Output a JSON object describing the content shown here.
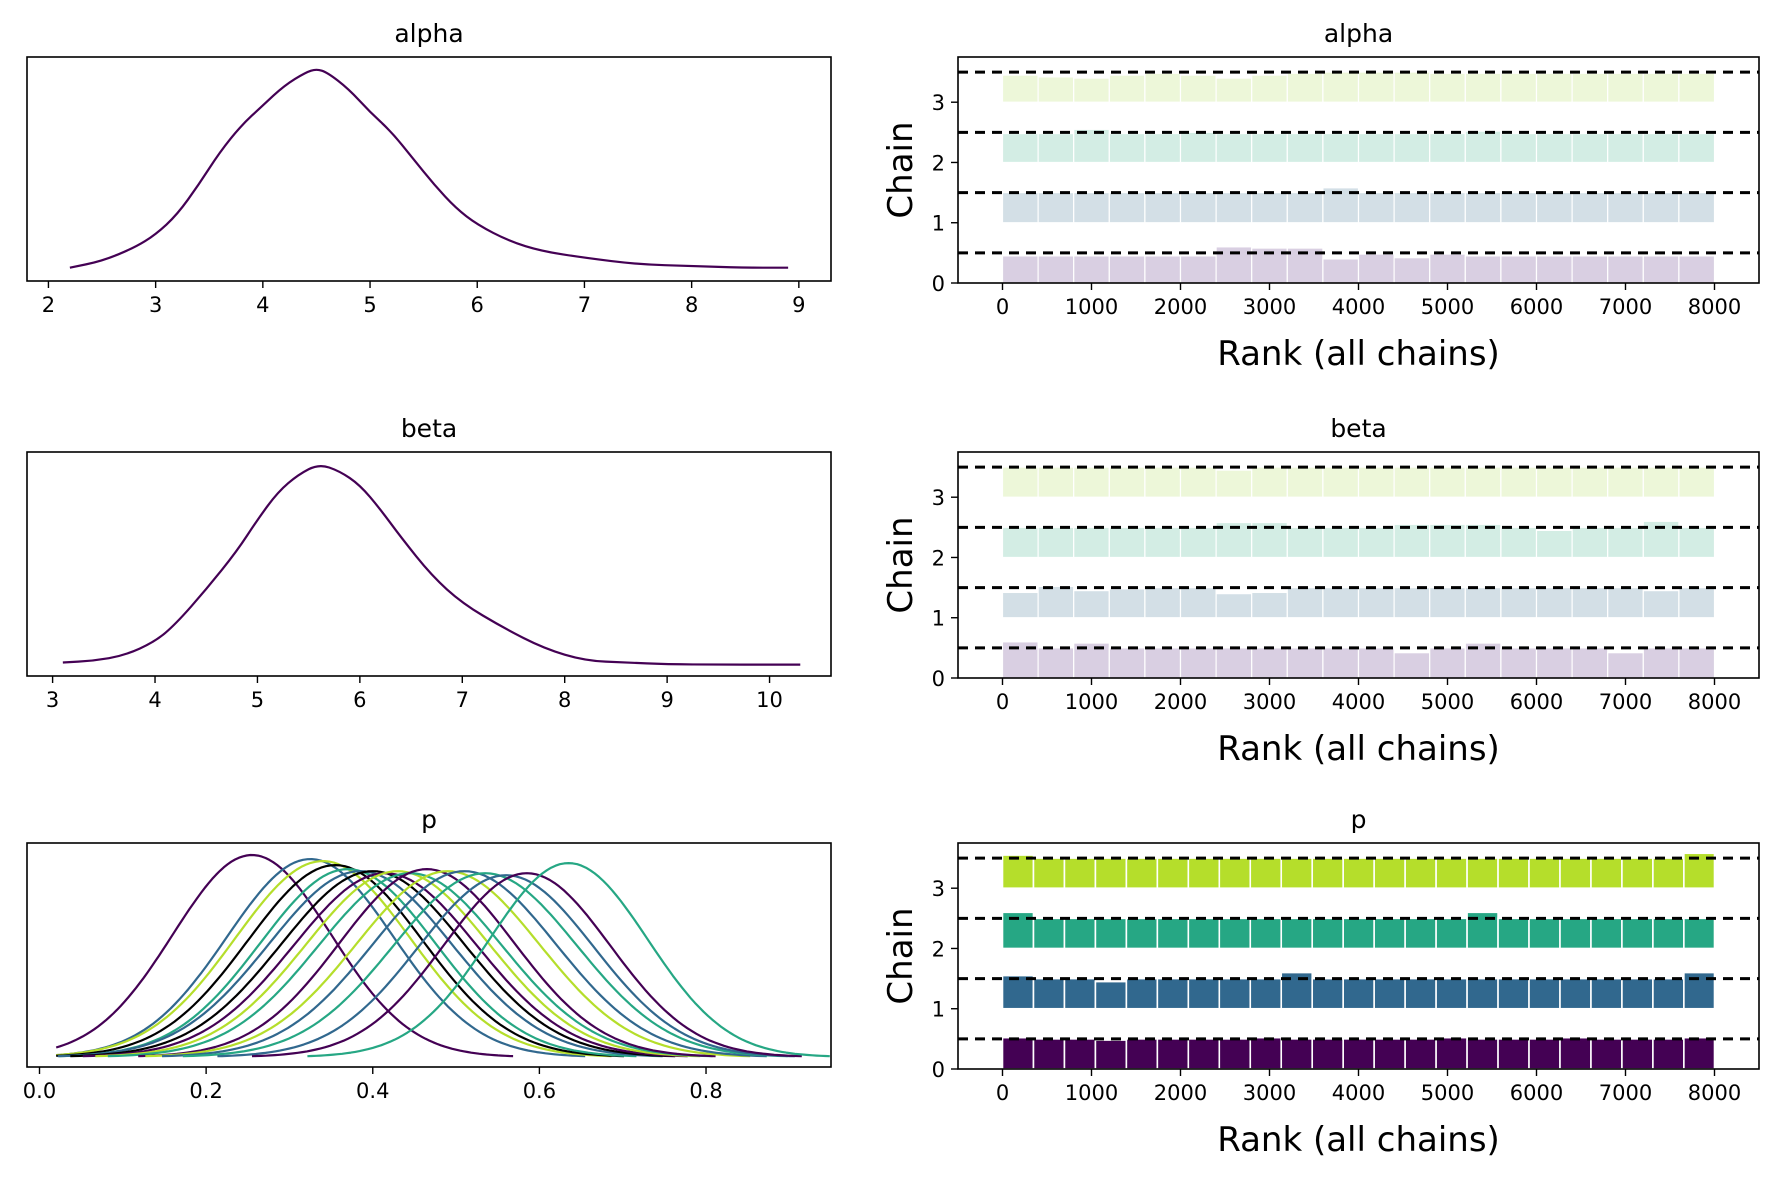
{
  "colors": {
    "chains_solid": [
      "#440154",
      "#31688e",
      "#26a784",
      "#b5de2b"
    ],
    "chains_faded": [
      "#d9cfe2",
      "#d3dfe6",
      "#d3ede4",
      "#edf7d9"
    ],
    "single_kde": "#440154"
  },
  "chart_data": [
    {
      "type": "line",
      "subtype": "kde",
      "title": "alpha",
      "xticks": [
        2,
        3,
        4,
        5,
        6,
        7,
        8,
        9
      ],
      "xlim": [
        1.8,
        9.3
      ],
      "yticks_visible": false,
      "series": [
        {
          "x": [
            2.2,
            2.5,
            2.8,
            3.0,
            3.2,
            3.4,
            3.6,
            3.8,
            4.0,
            4.2,
            4.4,
            4.5,
            4.6,
            4.8,
            5.0,
            5.2,
            5.4,
            5.6,
            5.8,
            6.0,
            6.3,
            6.6,
            7.0,
            7.5,
            8.0,
            8.5,
            8.9
          ],
          "y": [
            0.01,
            0.03,
            0.07,
            0.11,
            0.17,
            0.26,
            0.36,
            0.44,
            0.5,
            0.56,
            0.6,
            0.61,
            0.6,
            0.55,
            0.48,
            0.42,
            0.34,
            0.26,
            0.19,
            0.14,
            0.09,
            0.06,
            0.04,
            0.02,
            0.015,
            0.01,
            0.01
          ]
        }
      ]
    },
    {
      "type": "bar",
      "subtype": "rank",
      "title": "alpha",
      "xlabel": "Rank (all chains)",
      "ylabel": "Chain",
      "xticks": [
        0,
        1000,
        2000,
        3000,
        4000,
        5000,
        6000,
        7000,
        8000
      ],
      "yticks": [
        0,
        1,
        2,
        3
      ],
      "xlim": [
        -500,
        8500
      ],
      "ylim": [
        0,
        3.75
      ],
      "bin_width": 400,
      "bins": 20,
      "reference_level": 0.5,
      "chains": [
        {
          "chain": 0,
          "heights": [
            0.45,
            0.45,
            0.45,
            0.45,
            0.45,
            0.45,
            0.6,
            0.58,
            0.58,
            0.4,
            0.48,
            0.42,
            0.48,
            0.45,
            0.45,
            0.45,
            0.45,
            0.45,
            0.45,
            0.45
          ]
        },
        {
          "chain": 1,
          "heights": [
            0.5,
            0.5,
            0.5,
            0.5,
            0.5,
            0.5,
            0.5,
            0.5,
            0.5,
            0.58,
            0.5,
            0.5,
            0.5,
            0.5,
            0.5,
            0.5,
            0.5,
            0.5,
            0.5,
            0.5
          ]
        },
        {
          "chain": 2,
          "heights": [
            0.48,
            0.48,
            0.55,
            0.48,
            0.48,
            0.5,
            0.48,
            0.48,
            0.48,
            0.48,
            0.48,
            0.48,
            0.48,
            0.52,
            0.48,
            0.48,
            0.48,
            0.48,
            0.48,
            0.48
          ]
        },
        {
          "chain": 3,
          "heights": [
            0.45,
            0.42,
            0.4,
            0.45,
            0.48,
            0.45,
            0.4,
            0.45,
            0.48,
            0.5,
            0.5,
            0.5,
            0.48,
            0.48,
            0.48,
            0.48,
            0.48,
            0.48,
            0.48,
            0.48
          ]
        }
      ]
    },
    {
      "type": "line",
      "subtype": "kde",
      "title": "beta",
      "xticks": [
        3,
        4,
        5,
        6,
        7,
        8,
        9,
        10
      ],
      "xlim": [
        2.75,
        10.6
      ],
      "yticks_visible": false,
      "series": [
        {
          "x": [
            3.1,
            3.4,
            3.7,
            4.0,
            4.2,
            4.5,
            4.8,
            5.0,
            5.2,
            5.4,
            5.6,
            5.8,
            6.0,
            6.2,
            6.4,
            6.7,
            7.0,
            7.4,
            7.8,
            8.2,
            8.6,
            9.0,
            9.5,
            10.0,
            10.3
          ],
          "y": [
            0.01,
            0.015,
            0.03,
            0.07,
            0.12,
            0.22,
            0.33,
            0.42,
            0.5,
            0.55,
            0.58,
            0.56,
            0.52,
            0.45,
            0.37,
            0.26,
            0.18,
            0.11,
            0.05,
            0.015,
            0.01,
            0.005,
            0.004,
            0.004,
            0.004
          ]
        }
      ]
    },
    {
      "type": "bar",
      "subtype": "rank",
      "title": "beta",
      "xlabel": "Rank (all chains)",
      "ylabel": "Chain",
      "xticks": [
        0,
        1000,
        2000,
        3000,
        4000,
        5000,
        6000,
        7000,
        8000
      ],
      "yticks": [
        0,
        1,
        2,
        3
      ],
      "xlim": [
        -500,
        8500
      ],
      "ylim": [
        0,
        3.75
      ],
      "bin_width": 400,
      "bins": 20,
      "reference_level": 0.5,
      "chains": [
        {
          "chain": 0,
          "heights": [
            0.6,
            0.5,
            0.58,
            0.5,
            0.5,
            0.5,
            0.5,
            0.5,
            0.5,
            0.5,
            0.5,
            0.42,
            0.5,
            0.58,
            0.5,
            0.5,
            0.5,
            0.42,
            0.5,
            0.5
          ]
        },
        {
          "chain": 1,
          "heights": [
            0.42,
            0.52,
            0.45,
            0.48,
            0.5,
            0.5,
            0.4,
            0.42,
            0.5,
            0.5,
            0.5,
            0.5,
            0.5,
            0.5,
            0.5,
            0.5,
            0.5,
            0.5,
            0.45,
            0.5
          ]
        },
        {
          "chain": 2,
          "heights": [
            0.5,
            0.5,
            0.5,
            0.5,
            0.5,
            0.5,
            0.58,
            0.58,
            0.5,
            0.5,
            0.5,
            0.55,
            0.55,
            0.55,
            0.5,
            0.45,
            0.5,
            0.5,
            0.6,
            0.5
          ]
        },
        {
          "chain": 3,
          "heights": [
            0.5,
            0.5,
            0.5,
            0.5,
            0.5,
            0.5,
            0.45,
            0.5,
            0.5,
            0.5,
            0.5,
            0.5,
            0.5,
            0.5,
            0.5,
            0.5,
            0.5,
            0.5,
            0.5,
            0.5
          ]
        }
      ]
    },
    {
      "type": "line",
      "subtype": "kde",
      "title": "p",
      "xticks": [
        0.0,
        0.2,
        0.4,
        0.6,
        0.8
      ],
      "xlim": [
        -0.015,
        0.95
      ],
      "yticks_visible": false,
      "components": [
        {
          "mu": 0.255,
          "sigma": 0.095,
          "amp": 1.0,
          "color": "#440154"
        },
        {
          "mu": 0.325,
          "sigma": 0.1,
          "amp": 0.98,
          "color": "#31688e"
        },
        {
          "mu": 0.34,
          "sigma": 0.105,
          "amp": 0.97,
          "color": "#b5de2b"
        },
        {
          "mu": 0.355,
          "sigma": 0.105,
          "amp": 0.95,
          "color": "#000000"
        },
        {
          "mu": 0.37,
          "sigma": 0.105,
          "amp": 0.93,
          "color": "#26a784"
        },
        {
          "mu": 0.385,
          "sigma": 0.11,
          "amp": 0.92,
          "color": "#31688e"
        },
        {
          "mu": 0.4,
          "sigma": 0.11,
          "amp": 0.92,
          "color": "#000000"
        },
        {
          "mu": 0.415,
          "sigma": 0.11,
          "amp": 0.91,
          "color": "#440154"
        },
        {
          "mu": 0.43,
          "sigma": 0.11,
          "amp": 0.92,
          "color": "#b5de2b"
        },
        {
          "mu": 0.445,
          "sigma": 0.11,
          "amp": 0.91,
          "color": "#26a784"
        },
        {
          "mu": 0.465,
          "sigma": 0.105,
          "amp": 0.93,
          "color": "#440154"
        },
        {
          "mu": 0.49,
          "sigma": 0.11,
          "amp": 0.92,
          "color": "#b5de2b"
        },
        {
          "mu": 0.51,
          "sigma": 0.11,
          "amp": 0.92,
          "color": "#31688e"
        },
        {
          "mu": 0.535,
          "sigma": 0.11,
          "amp": 0.91,
          "color": "#26a784"
        },
        {
          "mu": 0.56,
          "sigma": 0.105,
          "amp": 0.9,
          "color": "#31688e"
        },
        {
          "mu": 0.585,
          "sigma": 0.1,
          "amp": 0.91,
          "color": "#440154"
        },
        {
          "mu": 0.635,
          "sigma": 0.095,
          "amp": 0.96,
          "color": "#26a784"
        }
      ]
    },
    {
      "type": "bar",
      "subtype": "rank",
      "title": "p",
      "xlabel": "Rank (all chains)",
      "ylabel": "Chain",
      "xticks": [
        0,
        1000,
        2000,
        3000,
        4000,
        5000,
        6000,
        7000,
        8000
      ],
      "yticks": [
        0,
        1,
        2,
        3
      ],
      "xlim": [
        -500,
        8500
      ],
      "ylim": [
        0,
        3.75
      ],
      "bin_width": 348,
      "bins": 23,
      "reference_level": 0.5,
      "chains": [
        {
          "chain": 0,
          "heights": [
            0.52,
            0.5,
            0.5,
            0.48,
            0.5,
            0.5,
            0.5,
            0.5,
            0.52,
            0.5,
            0.5,
            0.5,
            0.5,
            0.5,
            0.52,
            0.5,
            0.5,
            0.5,
            0.52,
            0.5,
            0.5,
            0.5,
            0.52
          ]
        },
        {
          "chain": 1,
          "heights": [
            0.55,
            0.5,
            0.5,
            0.45,
            0.5,
            0.5,
            0.5,
            0.5,
            0.5,
            0.6,
            0.5,
            0.5,
            0.5,
            0.5,
            0.5,
            0.5,
            0.5,
            0.5,
            0.5,
            0.5,
            0.5,
            0.5,
            0.6
          ]
        },
        {
          "chain": 2,
          "heights": [
            0.6,
            0.5,
            0.5,
            0.5,
            0.5,
            0.5,
            0.5,
            0.5,
            0.5,
            0.5,
            0.5,
            0.5,
            0.5,
            0.5,
            0.5,
            0.6,
            0.5,
            0.5,
            0.5,
            0.5,
            0.5,
            0.5,
            0.5
          ]
        },
        {
          "chain": 3,
          "heights": [
            0.55,
            0.5,
            0.5,
            0.5,
            0.5,
            0.5,
            0.5,
            0.5,
            0.5,
            0.5,
            0.5,
            0.5,
            0.5,
            0.5,
            0.5,
            0.5,
            0.5,
            0.5,
            0.5,
            0.5,
            0.5,
            0.5,
            0.58
          ]
        }
      ]
    }
  ]
}
